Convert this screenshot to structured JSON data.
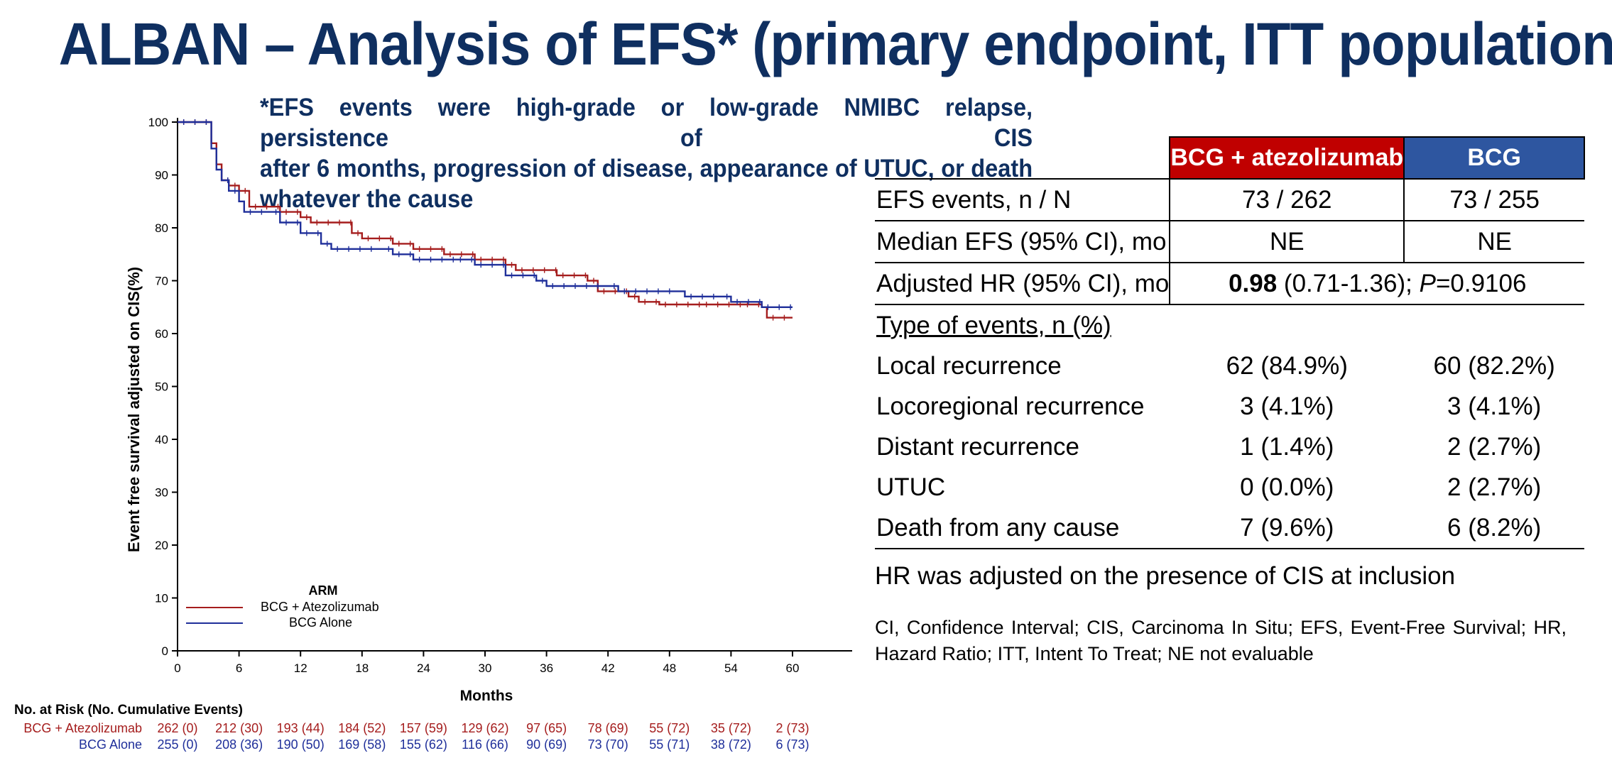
{
  "title": "ALBAN – Analysis of EFS* (primary endpoint, ITT population)",
  "footnote_lines": [
    "*EFS events were high-grade or low-grade NMIBC relapse, persistence of CIS",
    "after 6 months, progression of disease, appearance of UTUC, or death",
    "whatever the cause"
  ],
  "colors": {
    "red": "#a51d1d",
    "blue": "#1f2f9a",
    "navy": "#0f2f60"
  },
  "chart_data": {
    "type": "line",
    "ylabel": "Event free survival adjusted on CIS(%)",
    "xlabel": "Months",
    "xlim": [
      0,
      60
    ],
    "ylim": [
      0,
      100
    ],
    "x_ticks": [
      0,
      6,
      12,
      18,
      24,
      30,
      36,
      42,
      48,
      54,
      60
    ],
    "y_ticks": [
      0,
      10,
      20,
      30,
      40,
      50,
      60,
      70,
      80,
      90,
      100
    ],
    "legend_title": "ARM",
    "legend_position": "bottom-left",
    "series": [
      {
        "name": "BCG + Atezolizumab",
        "color": "#a51d1d",
        "points": [
          [
            0,
            100
          ],
          [
            3,
            100
          ],
          [
            3.3,
            96
          ],
          [
            3.8,
            92
          ],
          [
            4.3,
            89
          ],
          [
            5,
            88
          ],
          [
            6,
            87
          ],
          [
            7,
            84
          ],
          [
            10,
            83
          ],
          [
            12,
            82
          ],
          [
            13,
            81
          ],
          [
            17,
            79
          ],
          [
            18,
            78
          ],
          [
            21,
            77
          ],
          [
            23,
            76
          ],
          [
            26,
            75
          ],
          [
            29,
            74
          ],
          [
            32,
            73
          ],
          [
            33,
            72
          ],
          [
            37,
            71
          ],
          [
            40,
            70
          ],
          [
            41,
            68
          ],
          [
            44,
            67
          ],
          [
            45,
            66
          ],
          [
            47,
            65.5
          ],
          [
            51,
            65.5
          ],
          [
            55,
            65.5
          ],
          [
            57,
            65
          ],
          [
            57.5,
            63
          ],
          [
            60,
            63
          ]
        ]
      },
      {
        "name": "BCG Alone",
        "color": "#1f2f9a",
        "points": [
          [
            0,
            100
          ],
          [
            3,
            100
          ],
          [
            3.3,
            95
          ],
          [
            3.8,
            91
          ],
          [
            4.3,
            89
          ],
          [
            5,
            87
          ],
          [
            6,
            85
          ],
          [
            6.5,
            83
          ],
          [
            9,
            83
          ],
          [
            10,
            81
          ],
          [
            12,
            79
          ],
          [
            14,
            77
          ],
          [
            15,
            76
          ],
          [
            20,
            76
          ],
          [
            21,
            75
          ],
          [
            23,
            74
          ],
          [
            27,
            74
          ],
          [
            29,
            73
          ],
          [
            32,
            71
          ],
          [
            35,
            70
          ],
          [
            36,
            69
          ],
          [
            42,
            69
          ],
          [
            43,
            68
          ],
          [
            49,
            68
          ],
          [
            49.5,
            67
          ],
          [
            53,
            67
          ],
          [
            54,
            66
          ],
          [
            57,
            65
          ],
          [
            60,
            65
          ]
        ]
      }
    ],
    "risk_table": {
      "title": "No. at Risk (No. Cumulative Events)",
      "rows": [
        {
          "label": "BCG + Atezolizumab",
          "color": "#a51d1d",
          "values": [
            "262 (0)",
            "212 (30)",
            "193 (44)",
            "184 (52)",
            "157 (59)",
            "129 (62)",
            "97 (65)",
            "78 (69)",
            "55 (72)",
            "35 (72)",
            "2 (73)"
          ]
        },
        {
          "label": "BCG Alone",
          "color": "#1f2f9a",
          "values": [
            "255 (0)",
            "208 (36)",
            "190 (50)",
            "169 (58)",
            "155 (62)",
            "116 (66)",
            "90 (69)",
            "73 (70)",
            "55 (71)",
            "38 (72)",
            "6 (73)"
          ]
        }
      ]
    }
  },
  "table": {
    "col_headers": [
      "BCG + atezolizumab",
      "BCG"
    ],
    "efs_events": {
      "label": "EFS events, n / N",
      "a": "73 / 262",
      "b": "73 / 255"
    },
    "median_efs": {
      "label": "Median EFS (95% CI), mo",
      "a": "NE",
      "b": "NE"
    },
    "hr": {
      "label": "Adjusted HR (95% CI), mo",
      "value_bold": "0.98",
      "ci": " (0.71-1.36); ",
      "p_label": "P",
      "p_value": "=0.9106"
    },
    "types_header": "Type of events, n (%)",
    "types": [
      {
        "label": "Local recurrence",
        "a": "62 (84.9%)",
        "b": "60 (82.2%)"
      },
      {
        "label": "Locoregional recurrence",
        "a": "3 (4.1%)",
        "b": "3 (4.1%)"
      },
      {
        "label": "Distant recurrence",
        "a": "1 (1.4%)",
        "b": "2 (2.7%)"
      },
      {
        "label": "UTUC",
        "a": "0 (0.0%)",
        "b": "2 (2.7%)"
      },
      {
        "label": "Death from any cause",
        "a": "7 (9.6%)",
        "b": "6 (8.2%)"
      }
    ]
  },
  "note_hr": "HR was adjusted on the presence of CIS at inclusion",
  "note_abbrev": "CI, Confidence Interval; CIS, Carcinoma In Situ; EFS, Event-Free Survival; HR, Hazard Ratio; ITT, Intent To Treat; NE not evaluable"
}
